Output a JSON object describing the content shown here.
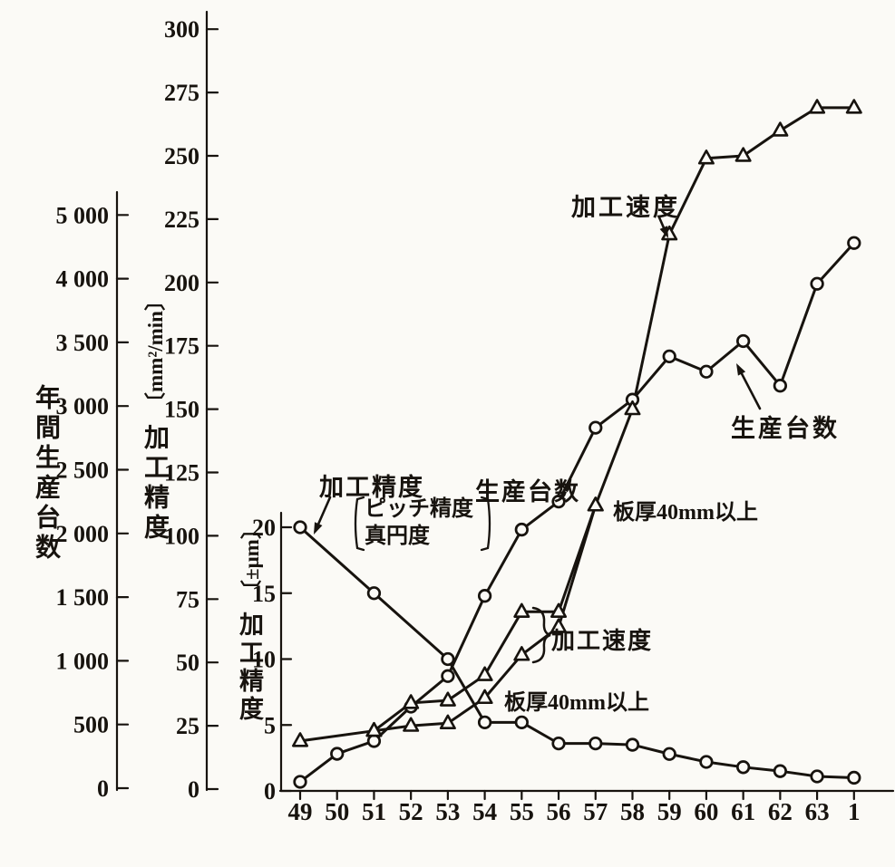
{
  "figure": {
    "paper_color": "#fbfaf6",
    "ink_color": "#17130e"
  },
  "axes": {
    "x": {
      "labels": [
        "49",
        "50",
        "51",
        "52",
        "53",
        "54",
        "55",
        "56",
        "57",
        "58",
        "59",
        "60",
        "61",
        "62",
        "63",
        "1"
      ]
    },
    "production": {
      "title": "年間生産台数",
      "ticks": [
        "5 000",
        "4 000",
        "3 500",
        "3 000",
        "2 500",
        "2 000",
        "1 500",
        "1 000",
        "500",
        "0"
      ]
    },
    "speed": {
      "title_kanji": "加工精度",
      "title_unit": "〔mm²/min〕",
      "ticks": [
        "300",
        "275",
        "250",
        "225",
        "200",
        "175",
        "150",
        "125",
        "100",
        "75",
        "50",
        "25",
        "0"
      ]
    },
    "accuracy": {
      "title_kanji": "加工精度",
      "title_unit": "〔±μm〕",
      "ticks": [
        "20",
        "15",
        "10",
        "5",
        "0"
      ]
    }
  },
  "annotations": {
    "speed_top": "加工速度",
    "production_right": "生産台数",
    "production_mid": "生産台数",
    "thick_upper": "板厚40mm以上",
    "speed_brace": "加工速度",
    "thick_lower": "板厚40mm以上",
    "accuracy_label": "加工精度",
    "accuracy_sub1": "ピッチ精度",
    "accuracy_sub2": "真円度"
  },
  "chart_data": {
    "type": "line",
    "x_categories": [
      "49",
      "50",
      "51",
      "52",
      "53",
      "54",
      "55",
      "56",
      "57",
      "58",
      "59",
      "60",
      "61",
      "62",
      "63",
      "1"
    ],
    "axis_ranges": {
      "production": [
        0,
        5000
      ],
      "speed": [
        0,
        300
      ],
      "accuracy": [
        0,
        20
      ]
    },
    "grid": false,
    "series": [
      {
        "name": "生産台数",
        "marker": "circle",
        "axis": "production",
        "points": [
          [
            "49",
            50
          ],
          [
            "50",
            270
          ],
          [
            "51",
            370
          ],
          [
            "52",
            640
          ],
          [
            "53",
            880
          ],
          [
            "54",
            1510
          ],
          [
            "55",
            2030
          ],
          [
            "56",
            2250
          ],
          [
            "57",
            2830
          ],
          [
            "58",
            3050
          ],
          [
            "59",
            3390
          ],
          [
            "60",
            3270
          ],
          [
            "61",
            3510
          ],
          [
            "62",
            3160
          ],
          [
            "63",
            3960
          ],
          [
            "1",
            4280
          ]
        ]
      },
      {
        "name": "加工速度",
        "marker": "triangle",
        "axis": "speed",
        "points": [
          [
            "49",
            19
          ],
          [
            "51",
            23
          ],
          [
            "52",
            34
          ],
          [
            "53",
            35
          ],
          [
            "54",
            45
          ],
          [
            "55",
            70
          ],
          [
            "56",
            70
          ],
          [
            "57",
            112
          ],
          [
            "58",
            150
          ],
          [
            "59",
            219
          ],
          [
            "60",
            249
          ],
          [
            "61",
            250
          ],
          [
            "62",
            260
          ],
          [
            "63",
            269
          ],
          [
            "1",
            269
          ]
        ]
      },
      {
        "name": "加工速度（板厚40mm以上）",
        "marker": "triangle",
        "axis": "speed",
        "points": [
          [
            "51",
            23
          ],
          [
            "52",
            25
          ],
          [
            "53",
            26
          ],
          [
            "54",
            36
          ],
          [
            "55",
            53
          ],
          [
            "56",
            64
          ],
          [
            "57",
            112
          ]
        ]
      },
      {
        "name": "加工精度（ピッチ精度・真円度）",
        "marker": "circle",
        "axis": "accuracy",
        "points": [
          [
            "49",
            20
          ],
          [
            "51",
            15
          ],
          [
            "53",
            10
          ],
          [
            "54",
            5.2
          ],
          [
            "55",
            5.2
          ],
          [
            "56",
            3.6
          ],
          [
            "57",
            3.6
          ],
          [
            "58",
            3.5
          ],
          [
            "59",
            2.8
          ],
          [
            "60",
            2.2
          ],
          [
            "61",
            1.8
          ],
          [
            "62",
            1.5
          ],
          [
            "63",
            1.1
          ],
          [
            "1",
            1.0
          ]
        ]
      }
    ]
  }
}
